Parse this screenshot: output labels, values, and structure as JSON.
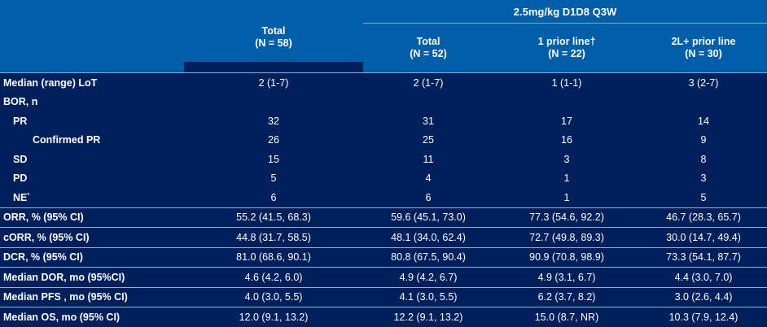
{
  "header": {
    "group_label": "2.5mg/kg D1D8 Q3W",
    "columns": [
      {
        "label": "Total",
        "n": "(N = 58)"
      },
      {
        "label": "Total",
        "n": "(N = 52)"
      },
      {
        "label": "1 prior line†",
        "n": "(N = 22)"
      },
      {
        "label": "2L+ prior line",
        "n": "(N = 30)"
      }
    ]
  },
  "rows": [
    {
      "label": "Median (range) LoT",
      "values": [
        "2 (1-7)",
        "2 (1-7)",
        "1 (1-1)",
        "3 (2-7)"
      ]
    },
    {
      "label": "BOR, n",
      "values": [
        "",
        "",
        "",
        ""
      ]
    },
    {
      "label": "PR",
      "values": [
        "32",
        "31",
        "17",
        "14"
      ]
    },
    {
      "label": "Confirmed PR",
      "values": [
        "26",
        "25",
        "16",
        "9"
      ]
    },
    {
      "label": "SD",
      "values": [
        "15",
        "11",
        "3",
        "8"
      ]
    },
    {
      "label": "PD",
      "values": [
        "5",
        "4",
        "1",
        "3"
      ]
    },
    {
      "label": "NE",
      "sup": "*",
      "values": [
        "6",
        "6",
        "1",
        "5"
      ]
    },
    {
      "label": "ORR, % (95% CI)",
      "values": [
        "55.2 (41.5, 68.3)",
        "59.6 (45.1, 73.0)",
        "77.3 (54.6, 92.2)",
        "46.7 (28.3, 65.7)"
      ]
    },
    {
      "label": "cORR, % (95% CI)",
      "values": [
        "44.8 (31.7, 58.5)",
        "48.1 (34.0, 62.4)",
        "72.7 (49.8, 89.3)",
        "30.0 (14.7, 49.4)"
      ]
    },
    {
      "label": "DCR, % (95% CI)",
      "values": [
        "81.0 (68.6, 90.1)",
        "80.8 (67.5, 90.4)",
        "90.9 (70.8, 98.9)",
        "73.3 (54.1, 87.7)"
      ]
    },
    {
      "label": "Median DOR, mo (95%CI)",
      "values": [
        "4.6 (4.2, 6.0)",
        "4.9 (4.2, 6.7)",
        "4.9 (3.1, 6.7)",
        "4.4 (3.0, 7.0)"
      ]
    },
    {
      "label": "Median PFS , mo (95% CI)",
      "values": [
        "4.0 (3.0, 5.5)",
        "4.1 (3.0, 5.5)",
        "6.2 (3.7, 8.2)",
        "3.0 (2.6, 4.4)"
      ]
    },
    {
      "label": "Median OS, mo (95% CI)",
      "values": [
        "12.0 (9.1, 13.2)",
        "12.2 (9.1, 13.2)",
        "15.0 (8.7, NR)",
        "10.3 (7.9, 12.4)"
      ]
    }
  ],
  "colors": {
    "background": "#00205b",
    "header_bg": "#005ea8",
    "rule": "#8fb0d8"
  }
}
